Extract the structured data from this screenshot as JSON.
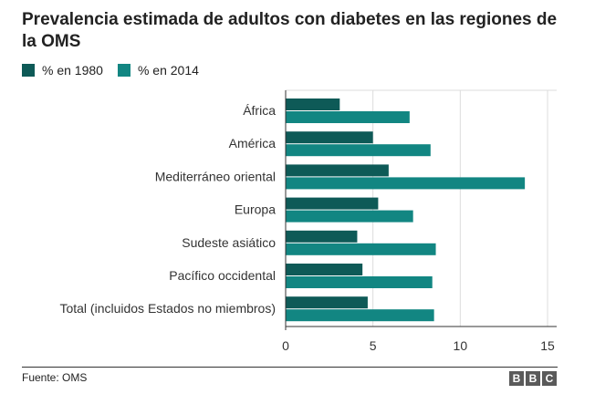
{
  "chart_data": {
    "type": "bar",
    "orientation": "horizontal",
    "title": "Prevalencia estimada de adultos con diabetes en las regiones de la OMS",
    "categories": [
      "África",
      "América",
      "Mediterráneo oriental",
      "Europa",
      "Sudeste asiático",
      "Pacífico occidental",
      "Total (incluidos Estados no miembros)"
    ],
    "series": [
      {
        "name": "% en 1980",
        "color": "#0e5a57",
        "values": [
          3.1,
          5.0,
          5.9,
          5.3,
          4.1,
          4.4,
          4.7
        ]
      },
      {
        "name": "% en 2014",
        "color": "#128682",
        "values": [
          7.1,
          8.3,
          13.7,
          7.3,
          8.6,
          8.4,
          8.5
        ]
      }
    ],
    "xlim": [
      0,
      15
    ],
    "xticks": [
      "0",
      "5",
      "10",
      "15"
    ],
    "grid": true,
    "legend_position": "top-left"
  },
  "footer": {
    "source": "Fuente: OMS",
    "logo_letters": [
      "B",
      "B",
      "C"
    ]
  }
}
